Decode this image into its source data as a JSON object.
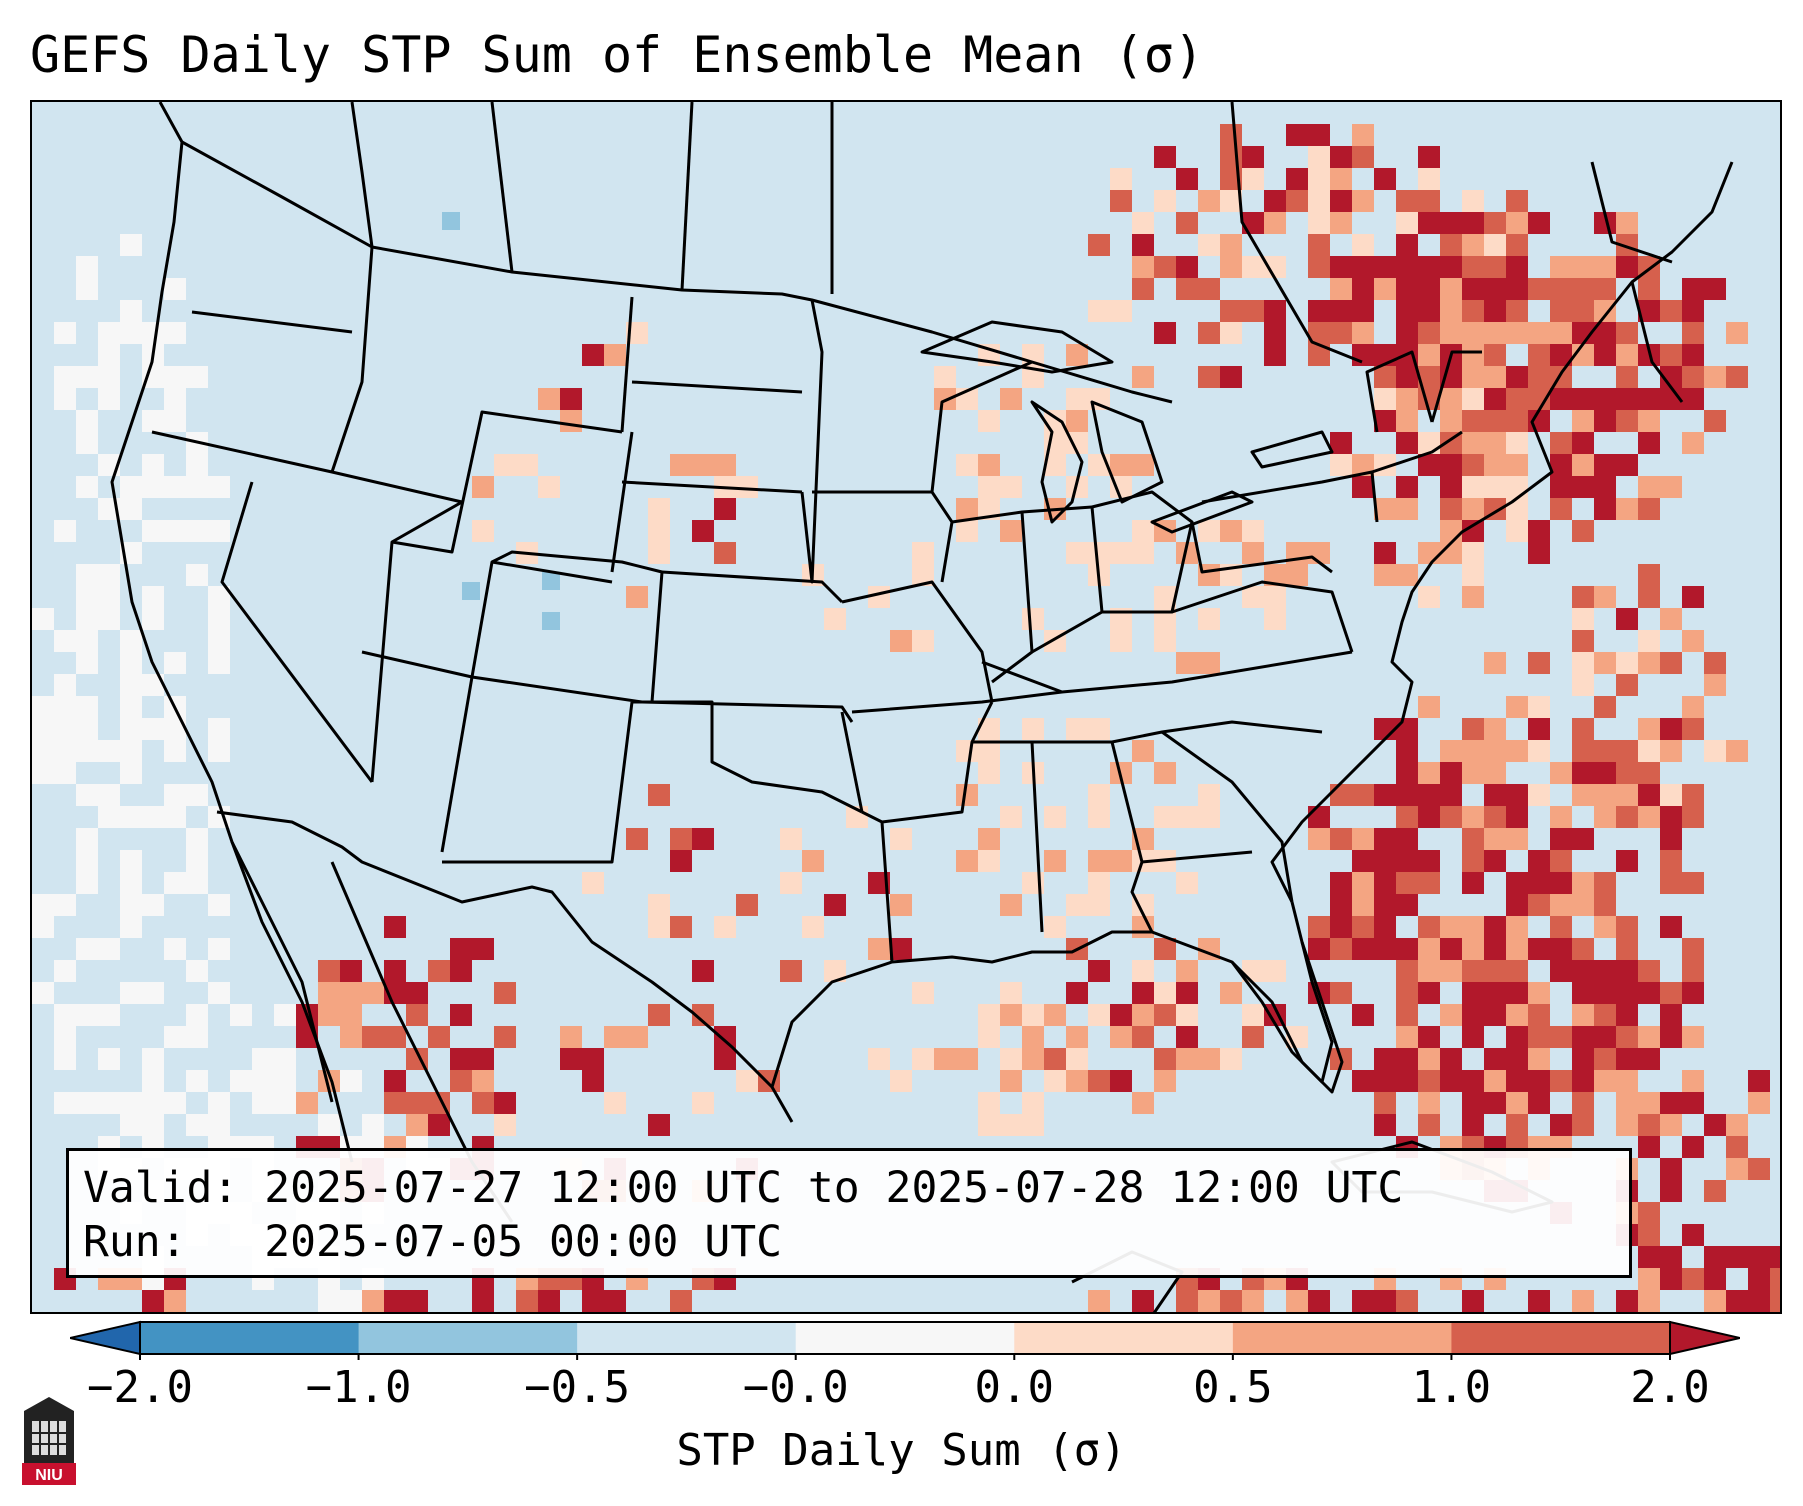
{
  "title": "GEFS Daily STP Sum of Ensemble Mean (σ)",
  "info": {
    "valid_label": "Valid:",
    "valid_value": "2025-07-27 12:00 UTC to 2025-07-28 12:00 UTC",
    "run_label": "Run:",
    "run_value": "2025-07-05 00:00 UTC"
  },
  "colorbar": {
    "label": "STP Daily Sum (σ)",
    "ticks": [
      "−2.0",
      "−1.0",
      "−0.5",
      "−0.0",
      "0.0",
      "0.5",
      "1.0",
      "2.0"
    ],
    "colors": [
      "#2166ac",
      "#4393c3",
      "#92c5de",
      "#d1e5f0",
      "#f7f7f7",
      "#fddbc7",
      "#f4a582",
      "#d6604d",
      "#b2182b"
    ]
  },
  "logo": {
    "text": "NIU",
    "description": "university-seal"
  },
  "map": {
    "ocean_color": "#d1e5f0",
    "land_color": "#d1e5f0",
    "line_color": "#000000"
  }
}
